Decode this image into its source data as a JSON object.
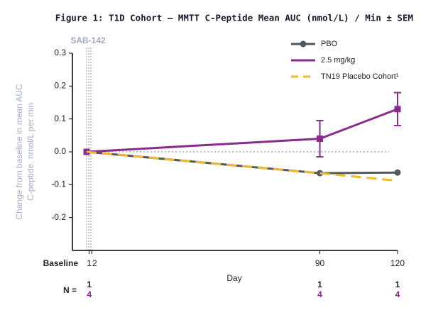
{
  "chart_data": {
    "type": "line",
    "title": "Figure 1: T1D Cohort – MMTT C-Peptide Mean AUC (nmol/L) / Min ± SEM",
    "y_label": [
      "Change from baseline in mean AUC",
      "C-peptide, nmol/L per min"
    ],
    "x_label": "Day",
    "annotation": "SAB-142",
    "baseline_label": "Baseline",
    "xlim": [
      -5.5,
      120
    ],
    "xticks": [
      1,
      2,
      90,
      120
    ],
    "ylim": [
      -0.3,
      0.3
    ],
    "yticks": [
      0.3,
      0.2,
      0.1,
      {
        "value": 0,
        "label": "0.0"
      },
      -0.1,
      -0.2
    ],
    "x": [
      0,
      90,
      120
    ],
    "series": [
      {
        "name": "PBO",
        "color": "#50585f",
        "marker": "circle",
        "values": [
          0,
          -0.065,
          -0.063
        ]
      },
      {
        "name": "2.5 mg/kg",
        "color": "#8a2a8e",
        "marker": "square",
        "values": [
          0,
          0.04,
          0.13
        ],
        "errors": [
          null,
          0.055,
          0.05
        ]
      },
      {
        "name": "TN19 Placebo Cohort¹",
        "color": "#f2b824",
        "dashed": true,
        "values": [
          0,
          -0.065,
          -0.088
        ]
      }
    ],
    "n_table": {
      "label": "N =",
      "x": [
        1,
        90,
        120
      ],
      "pbo": [
        1,
        1,
        1
      ],
      "dose": [
        4,
        4,
        4
      ]
    }
  }
}
